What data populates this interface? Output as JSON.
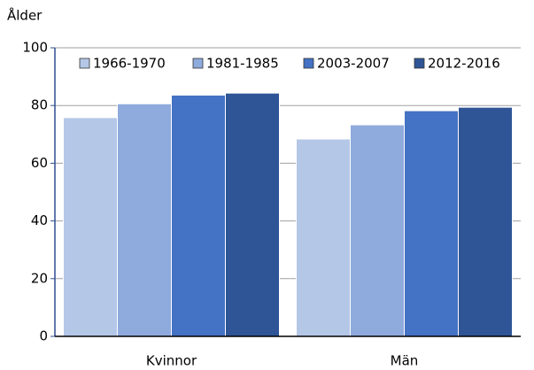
{
  "chart_data": {
    "type": "bar",
    "y_label": "Ålder",
    "categories": [
      "Kvinnor",
      "Män"
    ],
    "series": [
      {
        "name": "1966-1970",
        "color": "#b4c7e7",
        "values": [
          75.8,
          68.4
        ]
      },
      {
        "name": "1981-1985",
        "color": "#8faadc",
        "values": [
          80.6,
          73.3
        ]
      },
      {
        "name": "2003-2007",
        "color": "#4472c4",
        "values": [
          83.6,
          78.2
        ]
      },
      {
        "name": "2012-2016",
        "color": "#2f5597",
        "values": [
          84.3,
          79.4
        ]
      }
    ],
    "ylim": [
      0,
      100
    ],
    "yticks": [
      0,
      20,
      40,
      60,
      80,
      100
    ],
    "grid": true,
    "legend": "top"
  }
}
